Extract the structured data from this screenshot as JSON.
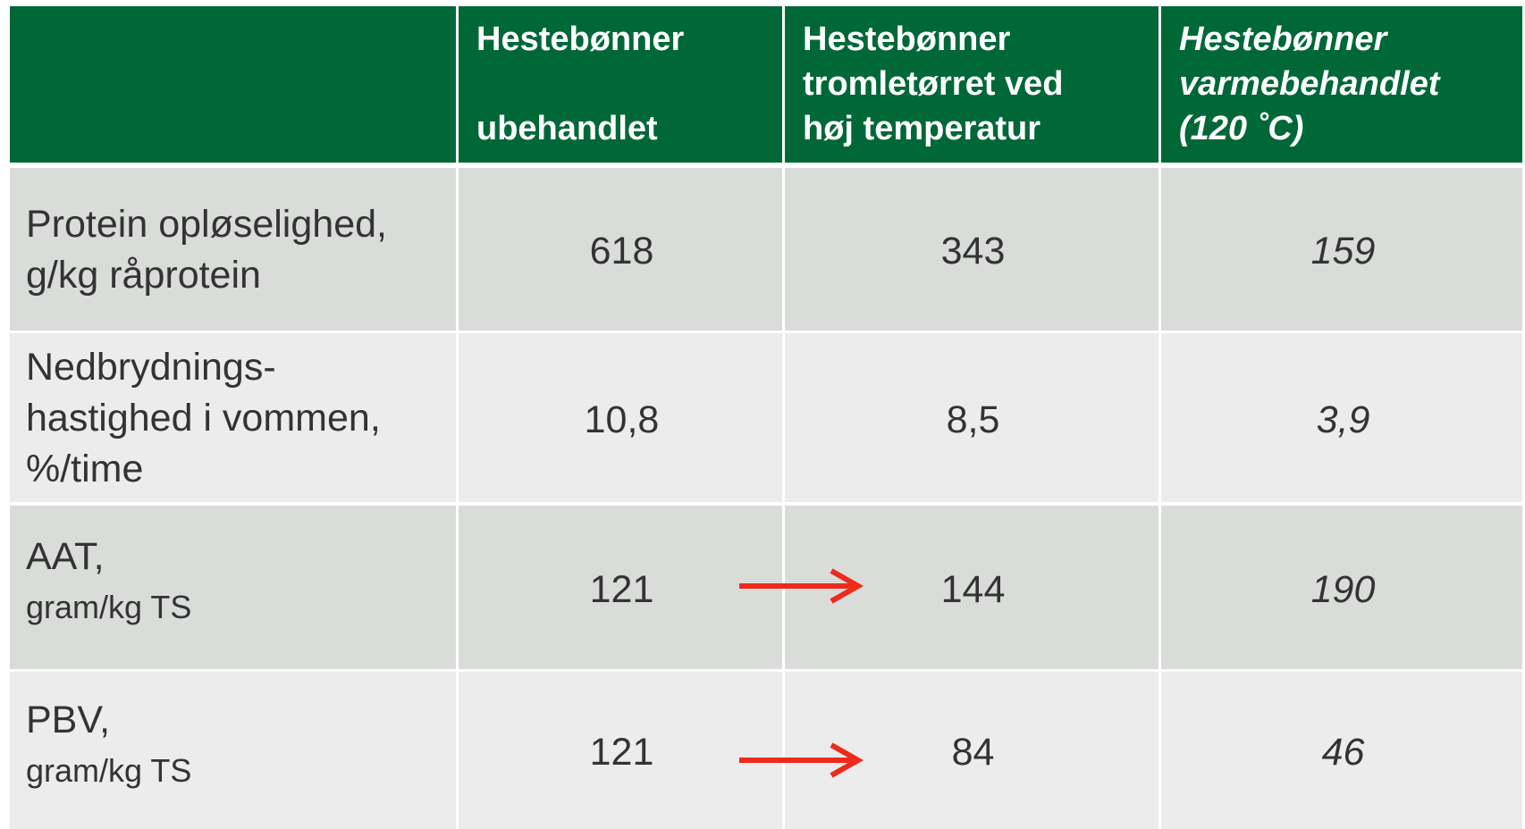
{
  "table": {
    "header": [
      {
        "lines": [
          "Hestebønner",
          "ubehandlet"
        ]
      },
      {
        "lines": [
          "Hestebønner",
          "tromletørret ved",
          "høj temperatur"
        ]
      },
      {
        "lines": [
          "Hestebønner",
          "varmebehandlet",
          "(120 ˚C)"
        ]
      }
    ],
    "rows": [
      {
        "label": [
          "Protein opløselighed,",
          "g/kg råprotein"
        ],
        "values": [
          "618",
          "343",
          "159"
        ]
      },
      {
        "label": [
          "Nedbrydnings-",
          "hastighed i vommen,",
          "%/time"
        ],
        "values": [
          "10,8",
          "8,5",
          "3,9"
        ]
      },
      {
        "label": [
          "AAT,"
        ],
        "sublabel": "gram/kg TS",
        "values": [
          "121",
          "144",
          "190"
        ]
      },
      {
        "label": [
          "PBV,"
        ],
        "sublabel": "gram/kg TS",
        "values": [
          "121",
          "84",
          "46"
        ]
      }
    ]
  }
}
